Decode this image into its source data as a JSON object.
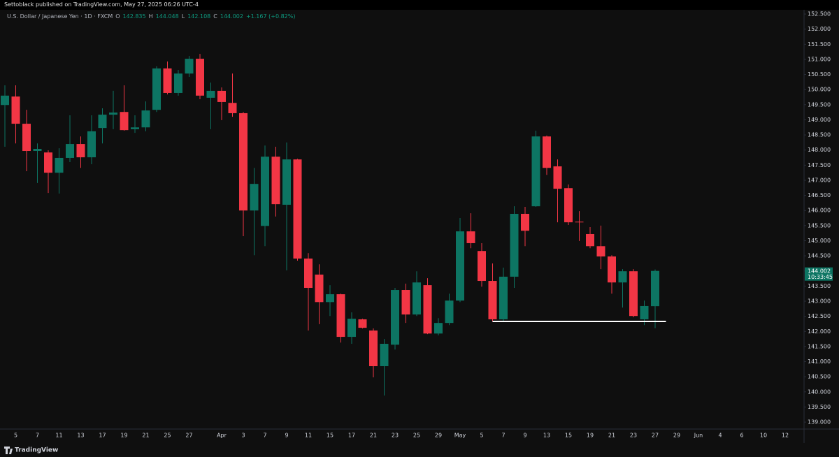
{
  "chart_data": {
    "type": "candlestick",
    "attribution": "Settoblack published on TradingView.com, May 27, 2025 06:26 UTC-4",
    "title": "U.S. Dollar / Japanese Yen · 1D · FXCM",
    "ohlc_labels": [
      "O",
      "H",
      "L",
      "C"
    ],
    "change": "+1.167 (+0.82%)",
    "countdown": "10:33:45",
    "brand": "TradingView",
    "up_color": "#0d7563",
    "down_color": "#f23645",
    "grid": false,
    "categories": [
      null,
      "5",
      null,
      "7",
      null,
      "11",
      null,
      "13",
      null,
      "17",
      null,
      "19",
      null,
      "21",
      null,
      "25",
      null,
      "27",
      null,
      null,
      "Apr",
      null,
      "3",
      null,
      "7",
      null,
      "9",
      null,
      "11",
      null,
      "15",
      null,
      "17",
      null,
      "21",
      null,
      "23",
      null,
      "25",
      null,
      "29",
      null,
      "May",
      null,
      "5",
      null,
      "7",
      null,
      "9",
      null,
      "13",
      null,
      "15",
      null,
      "19",
      null,
      "21",
      null,
      "23",
      null,
      "27",
      null,
      "29",
      null,
      "Jun",
      null,
      "4",
      null,
      "6",
      null,
      "10",
      null,
      "12"
    ],
    "open": [
      149.49,
      149.77,
      148.87,
      147.97,
      147.92,
      147.25,
      147.74,
      148.2,
      147.76,
      148.73,
      149.17,
      149.26,
      148.69,
      148.75,
      149.33,
      150.7,
      149.89,
      150.53,
      151.02,
      149.73,
      149.96,
      149.56,
      149.22,
      146.0,
      145.49,
      147.78,
      146.19,
      147.69,
      144.41,
      143.88,
      142.97,
      143.23,
      141.82,
      142.4,
      142.03,
      140.85,
      141.56,
      143.37,
      142.56,
      143.53,
      141.93,
      142.28,
      143.02,
      145.31,
      144.66,
      143.67,
      142.4,
      143.81,
      145.89,
      146.14,
      148.45,
      147.46,
      146.74,
      145.63,
      145.22,
      144.82,
      144.48,
      143.62,
      143.99,
      142.4,
      142.835,
      null,
      null,
      null,
      null,
      null,
      null,
      null,
      null,
      null,
      null,
      null,
      null
    ],
    "high": [
      150.14,
      150.14,
      149.33,
      148.22,
      147.99,
      148.06,
      149.15,
      148.45,
      149.15,
      149.38,
      149.96,
      150.14,
      149.15,
      149.61,
      150.77,
      150.93,
      150.65,
      151.11,
      151.18,
      150.23,
      150.07,
      150.53,
      149.26,
      147.41,
      148.15,
      148.11,
      148.25,
      147.71,
      144.59,
      144.22,
      143.53,
      143.25,
      142.63,
      142.42,
      142.1,
      141.75,
      143.44,
      143.58,
      143.99,
      143.76,
      142.44,
      143.25,
      145.75,
      145.91,
      144.92,
      144.25,
      144.11,
      146.14,
      146.12,
      148.64,
      148.48,
      147.69,
      146.86,
      145.98,
      145.45,
      145.5,
      144.52,
      144.06,
      144.06,
      143.02,
      144.048,
      null,
      null,
      null,
      null,
      null,
      null,
      null,
      null,
      null,
      null,
      null,
      null
    ],
    "low": [
      148.11,
      148.22,
      147.3,
      146.91,
      146.58,
      146.56,
      147.6,
      147.41,
      147.53,
      148.22,
      148.69,
      148.64,
      148.57,
      148.62,
      149.26,
      149.84,
      149.8,
      150.42,
      149.68,
      148.69,
      148.99,
      149.1,
      145.15,
      144.52,
      144.82,
      145.8,
      144.02,
      144.34,
      142.03,
      142.24,
      142.51,
      141.63,
      141.59,
      142.1,
      140.48,
      139.88,
      141.4,
      142.28,
      142.51,
      141.91,
      141.87,
      142.21,
      142.97,
      144.75,
      143.48,
      142.33,
      142.33,
      143.44,
      144.82,
      146.12,
      147.18,
      145.61,
      145.52,
      144.99,
      144.75,
      144.06,
      143.25,
      142.79,
      142.47,
      142.21,
      142.108,
      null,
      null,
      null,
      null,
      null,
      null,
      null,
      null,
      null,
      null,
      null,
      null
    ],
    "close": [
      149.8,
      148.87,
      147.97,
      148.04,
      147.25,
      147.74,
      148.2,
      147.76,
      148.62,
      149.17,
      149.24,
      148.66,
      148.75,
      149.31,
      150.7,
      149.89,
      150.53,
      151.02,
      149.8,
      149.96,
      149.59,
      149.22,
      146.0,
      146.88,
      147.78,
      146.21,
      147.69,
      144.41,
      143.44,
      142.97,
      143.23,
      141.82,
      142.42,
      142.12,
      140.85,
      141.59,
      143.37,
      142.56,
      143.62,
      141.93,
      142.28,
      143.02,
      145.31,
      144.92,
      143.67,
      142.4,
      143.81,
      145.89,
      145.33,
      148.45,
      147.41,
      146.72,
      145.61,
      145.61,
      144.82,
      144.48,
      143.62,
      143.99,
      142.51,
      142.84,
      144.002,
      null,
      null,
      null,
      null,
      null,
      null,
      null,
      null,
      null,
      null,
      null,
      null
    ],
    "hline": {
      "value": 142.33,
      "from": 45,
      "to": 61,
      "color": "#ffffff"
    },
    "ylim": [
      138.77,
      152.64
    ],
    "yticks": [
      {
        "value": 139,
        "label": "139.000"
      },
      {
        "value": 139.5,
        "label": "139.500"
      },
      {
        "value": 140,
        "label": "140.000"
      },
      {
        "value": 140.5,
        "label": "140.500"
      },
      {
        "value": 141,
        "label": "141.000"
      },
      {
        "value": 141.5,
        "label": "141.500"
      },
      {
        "value": 142,
        "label": "142.000"
      },
      {
        "value": 142.5,
        "label": "142.500"
      },
      {
        "value": 143,
        "label": "143.000"
      },
      {
        "value": 143.5,
        "label": "143.500"
      },
      {
        "value": 144,
        "label": "144.000"
      },
      {
        "value": 144.5,
        "label": "144.500"
      },
      {
        "value": 145,
        "label": "145.000"
      },
      {
        "value": 145.5,
        "label": "145.500"
      },
      {
        "value": 146,
        "label": "146.000"
      },
      {
        "value": 146.5,
        "label": "146.500"
      },
      {
        "value": 147,
        "label": "147.000"
      },
      {
        "value": 147.5,
        "label": "147.500"
      },
      {
        "value": 148,
        "label": "148.000"
      },
      {
        "value": 148.5,
        "label": "148.500"
      },
      {
        "value": 149,
        "label": "149.000"
      },
      {
        "value": 149.5,
        "label": "149.500"
      },
      {
        "value": 150,
        "label": "150.000"
      },
      {
        "value": 150.5,
        "label": "150.500"
      },
      {
        "value": 151,
        "label": "151.000"
      },
      {
        "value": 151.5,
        "label": "151.500"
      },
      {
        "value": 152,
        "label": "152.000"
      },
      {
        "value": 152.5,
        "label": "152.500"
      }
    ]
  }
}
